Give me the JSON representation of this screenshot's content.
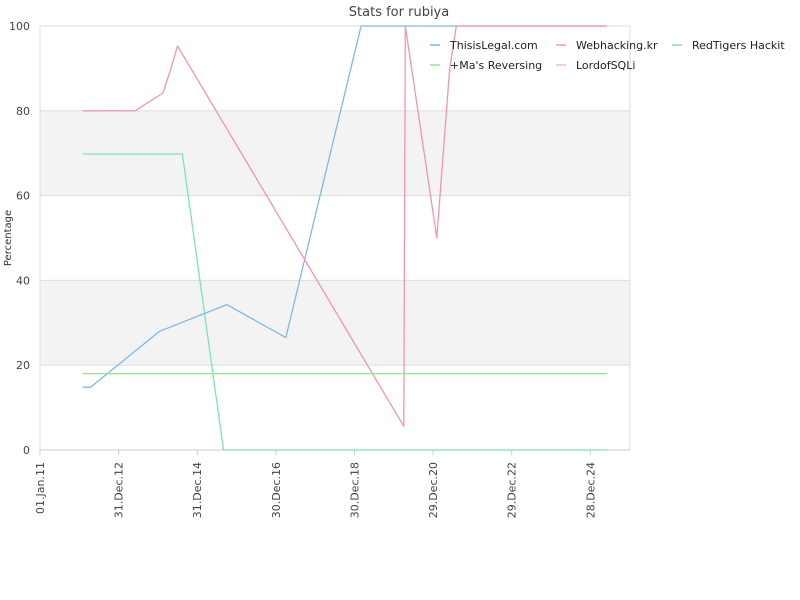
{
  "chart_data": {
    "type": "line",
    "title": "Stats for rubiya",
    "xlabel": "",
    "ylabel": "Percentage",
    "ylim": [
      0,
      100
    ],
    "xlim": [
      "2011-01-01",
      "2025-12-31"
    ],
    "y_ticks": [
      0,
      20,
      40,
      60,
      80,
      100
    ],
    "x_ticks": [
      "01.Jan.11",
      "31.Dec.12",
      "31.Dec.14",
      "30.Dec.16",
      "30.Dec.18",
      "29.Dec.20",
      "29.Dec.22",
      "28.Dec.24"
    ],
    "x_tick_dates": [
      "2011-01-01",
      "2012-12-31",
      "2014-12-31",
      "2016-12-30",
      "2018-12-30",
      "2020-12-29",
      "2022-12-29",
      "2024-12-28"
    ],
    "grid": true,
    "bands": [
      [
        20,
        40
      ],
      [
        60,
        80
      ]
    ],
    "legend_position": "top-right",
    "series": [
      {
        "name": "ThisisLegal.com",
        "color": "#7cb9e8",
        "points": [
          [
            "2012-02-01",
            14.8
          ],
          [
            "2012-04-15",
            14.8
          ],
          [
            "2014-01-15",
            28.0
          ],
          [
            "2015-10-01",
            34.3
          ],
          [
            "2017-04-01",
            26.5
          ],
          [
            "2019-03-01",
            100.0
          ],
          [
            "2025-06-01",
            100.0
          ]
        ]
      },
      {
        "name": "Webhacking.kr",
        "color": "#f294b4",
        "points": [
          [
            "2012-02-01",
            80.0
          ],
          [
            "2013-06-01",
            80.0
          ],
          [
            "2014-02-15",
            84.2
          ],
          [
            "2014-05-01",
            90.0
          ],
          [
            "2014-07-01",
            95.3
          ],
          [
            "2020-04-01",
            5.6
          ],
          [
            "2020-04-15",
            100.0
          ],
          [
            "2021-02-01",
            50.0
          ],
          [
            "2021-06-01",
            90.0
          ],
          [
            "2021-08-01",
            100.0
          ],
          [
            "2025-06-01",
            100.0
          ]
        ]
      },
      {
        "name": "RedTigers Hackit",
        "color": "#7fe0c0",
        "points": [
          [
            "2012-02-01",
            69.8
          ],
          [
            "2014-08-15",
            69.8
          ],
          [
            "2015-09-01",
            0.0
          ],
          [
            "2025-06-01",
            0.0
          ]
        ]
      },
      {
        "name": "+Ma's Reversing",
        "color": "#99e699",
        "points": [
          [
            "2012-02-01",
            18.0
          ],
          [
            "2025-06-01",
            18.0
          ]
        ]
      },
      {
        "name": "LordofSQLi",
        "color": "#f7b3d2",
        "points": []
      }
    ]
  }
}
